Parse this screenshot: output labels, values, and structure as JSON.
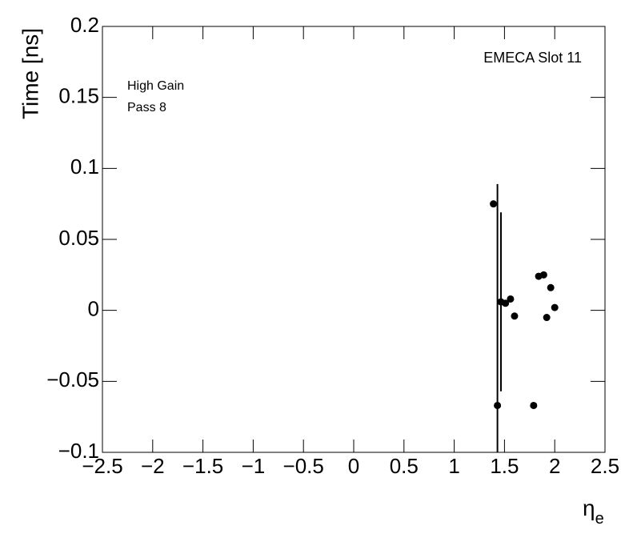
{
  "chart_data": {
    "type": "scatter",
    "ylabel": "Time [ns]",
    "xlabel": "η",
    "xlabel_subscript": "e",
    "annotations": [
      "EMECA Slot 11",
      "High Gain",
      "Pass 8"
    ],
    "series": [
      {
        "color": "#000000",
        "x": [
          1.39,
          1.43,
          1.465,
          1.51,
          1.56,
          1.6,
          1.79,
          1.84,
          1.89,
          1.96,
          1.92,
          2.0
        ],
        "values": [
          0.075,
          -0.067,
          0.006,
          0.005,
          0.008,
          -0.004,
          -0.067,
          0.024,
          0.025,
          0.016,
          -0.005,
          0.002
        ],
        "errors": [
          null,
          0.156,
          0.063,
          null,
          null,
          null,
          null,
          null,
          null,
          null,
          null,
          null
        ]
      }
    ],
    "xlim": [
      -2.5,
      2.5
    ],
    "ylim": [
      -0.1,
      0.2
    ],
    "xticks": [
      {
        "value": -2.5,
        "label": "−2.5"
      },
      {
        "value": -2,
        "label": "−2"
      },
      {
        "value": -1.5,
        "label": "−1.5"
      },
      {
        "value": -1,
        "label": "−1"
      },
      {
        "value": -0.5,
        "label": "−0.5"
      },
      0,
      0.5,
      1,
      1.5,
      2,
      2.5
    ],
    "yticks": [
      {
        "value": -0.1,
        "label": "−0.1"
      },
      {
        "value": -0.05,
        "label": "−0.05"
      },
      0,
      0.05,
      0.1,
      0.15,
      0.2
    ]
  }
}
